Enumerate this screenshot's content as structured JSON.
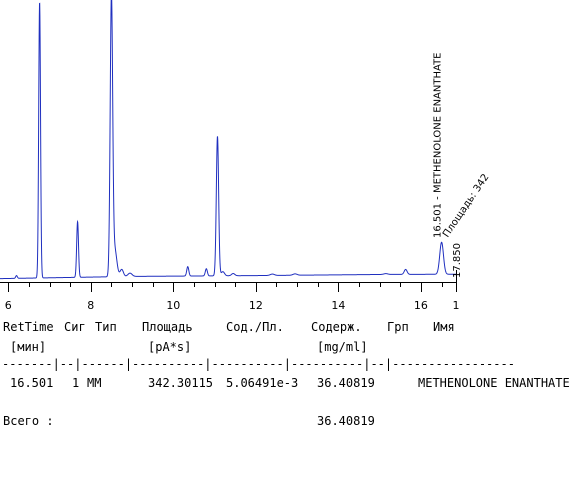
{
  "chart_data": {
    "type": "line",
    "title": "",
    "xlabel": "",
    "ylabel": "",
    "xlim": [
      5.8,
      16.85
    ],
    "ylim": [
      0,
      100
    ],
    "grid": false,
    "x_ticks": [
      6,
      8,
      10,
      12,
      14,
      16
    ],
    "x_tick_labels": [
      "6",
      "8",
      "10",
      "12",
      "14",
      "16"
    ],
    "x_right_edge_label": "1",
    "line_color": "#1f2fbf",
    "peaks": [
      {
        "x": 6.2,
        "height": 1.0,
        "width": 0.02
      },
      {
        "x": 6.76,
        "height": 100,
        "width": 0.022
      },
      {
        "x": 7.68,
        "height": 20.2,
        "width": 0.022
      },
      {
        "x": 8.5,
        "height": 100,
        "width": 0.03
      },
      {
        "x": 8.58,
        "height": 10,
        "width": 0.05
      },
      {
        "x": 8.75,
        "height": 2.6,
        "width": 0.04
      },
      {
        "x": 8.95,
        "height": 1.2,
        "width": 0.05
      },
      {
        "x": 10.35,
        "height": 3.4,
        "width": 0.025
      },
      {
        "x": 10.8,
        "height": 2.6,
        "width": 0.025
      },
      {
        "x": 11.07,
        "height": 50.6,
        "width": 0.028
      },
      {
        "x": 11.2,
        "height": 1.5,
        "width": 0.04
      },
      {
        "x": 11.45,
        "height": 0.8,
        "width": 0.04
      },
      {
        "x": 12.4,
        "height": 0.5,
        "width": 0.05
      },
      {
        "x": 12.95,
        "height": 0.5,
        "width": 0.05
      },
      {
        "x": 15.15,
        "height": 0.3,
        "width": 0.05
      },
      {
        "x": 15.63,
        "height": 1.8,
        "width": 0.035
      },
      {
        "x": 16.501,
        "height": 11.6,
        "width": 0.045
      }
    ],
    "baseline": [
      [
        5.8,
        0.5
      ],
      [
        9,
        1.3
      ],
      [
        12,
        1.6
      ],
      [
        15,
        2.0
      ],
      [
        16.85,
        2.1
      ]
    ],
    "annotations": [
      {
        "text": "16.501 - METHENOLONE ENANTHATE",
        "x": 16.501,
        "orientation": "vertical"
      },
      {
        "text": "Площадь: 342",
        "x": 16.55,
        "orientation": "diagonal"
      },
      {
        "text": "17.850",
        "x": 16.85,
        "orientation": "vertical"
      }
    ]
  },
  "table": {
    "header1": [
      "RetTime",
      "Сиг",
      "Тип",
      "Площадь",
      "Сод./Пл.",
      "Содерж.",
      "Грп",
      "Имя"
    ],
    "header2": [
      "[мин]",
      "",
      "",
      "[pA*s]",
      "",
      "[mg/ml]",
      "",
      ""
    ],
    "divider": "-------|--|------|----------|----------|----------|--|-----------------",
    "rows": [
      [
        "16.501",
        "1",
        "MM",
        "342.30115",
        "5.06491e-3",
        "36.40819",
        "",
        "METHENOLONE ENANTHATE"
      ]
    ],
    "total_label": "Всего :",
    "total_value": "36.40819"
  }
}
